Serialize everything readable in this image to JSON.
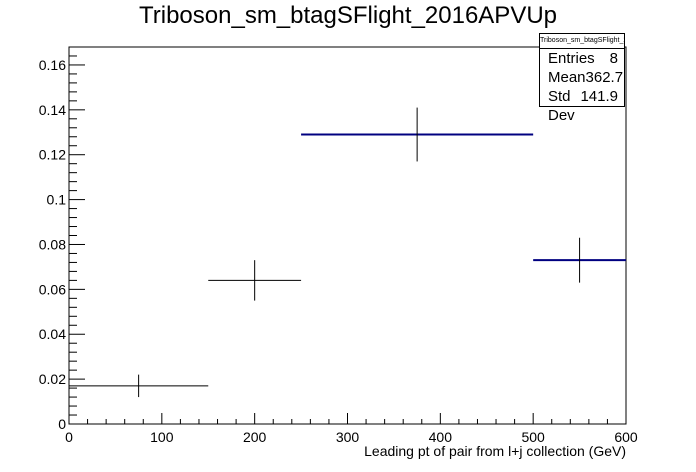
{
  "chart_data": {
    "type": "histogram",
    "title": "Triboson_sm_btagSFlight_2016APVUp",
    "xlabel": "Leading pt of pair from l+j collection (GeV)",
    "ylabel": "",
    "xlim": [
      0,
      600
    ],
    "ylim": [
      0,
      0.168
    ],
    "x_ticks": [
      0,
      100,
      200,
      300,
      400,
      500,
      600
    ],
    "y_ticks": [
      0,
      0.02,
      0.04,
      0.06,
      0.08,
      0.1,
      0.12,
      0.14,
      0.16
    ],
    "x_tick_labels": [
      "0",
      "100",
      "200",
      "300",
      "400",
      "500",
      "600"
    ],
    "y_tick_labels": [
      "0",
      "0.02",
      "0.04",
      "0.06",
      "0.08",
      "0.1",
      "0.12",
      "0.14",
      "0.16"
    ],
    "bins": [
      {
        "low": 0,
        "high": 150,
        "value": 0.017,
        "error": 0.005,
        "color": "#000000"
      },
      {
        "low": 150,
        "high": 250,
        "value": 0.064,
        "error": 0.009,
        "color": "#000000"
      },
      {
        "low": 250,
        "high": 500,
        "value": 0.129,
        "error": 0.012,
        "color": "#000080"
      },
      {
        "low": 500,
        "high": 600,
        "value": 0.073,
        "error": 0.01,
        "color": "#000080"
      }
    ],
    "grid": false,
    "legend": "none"
  },
  "stats": {
    "title": "Triboson_sm_btagSFlight_2016APVUp",
    "rows": [
      {
        "label": "Entries",
        "value": "8"
      },
      {
        "label": "Mean",
        "value": "362.7"
      },
      {
        "label": "Std Dev",
        "value": "141.9"
      }
    ]
  }
}
